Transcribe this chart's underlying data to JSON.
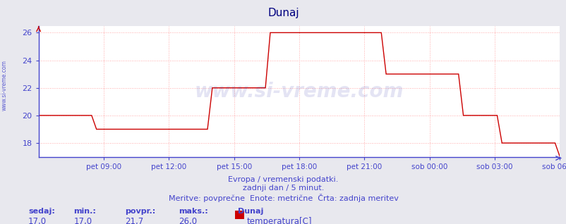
{
  "title": "Dunaj",
  "title_color": "#000080",
  "bg_color": "#e8e8ee",
  "plot_bg_color": "#ffffff",
  "line_color": "#cc0000",
  "grid_color": "#ffaaaa",
  "grid_linestyle": ":",
  "axis_color": "#4444cc",
  "text_color": "#4444cc",
  "watermark": "www.si-vreme.com",
  "watermark_color": "#3333aa",
  "watermark_alpha": 0.13,
  "ylim": [
    17.0,
    26.5
  ],
  "yticks": [
    18,
    20,
    22,
    24,
    26
  ],
  "xlabel_texts": [
    "pet 09:00",
    "pet 12:00",
    "pet 15:00",
    "pet 18:00",
    "pet 21:00",
    "sob 00:00",
    "sob 03:00",
    "sob 06:00"
  ],
  "footer_line1": "Evropa / vremenski podatki.",
  "footer_line2": "zadnji dan / 5 minut.",
  "footer_line3": "Meritve: povprečne  Enote: metrične  Črta: zadnja meritev",
  "stat_headers": [
    "sedaj:",
    "min.:",
    "povpr.:",
    "maks.:",
    "Dunaj"
  ],
  "stat_values": [
    "17,0",
    "17,0",
    "21,7",
    "26,0"
  ],
  "legend_label": "temperatura[C]",
  "legend_color": "#cc0000",
  "left_label": "www.si-vreme.com",
  "temperature_data": [
    20,
    20,
    20,
    20,
    20,
    20,
    20,
    20,
    20,
    20,
    20,
    20,
    19,
    19,
    19,
    19,
    19,
    19,
    19,
    19,
    19,
    19,
    19,
    19,
    19,
    19,
    19,
    19,
    19,
    19,
    19,
    19,
    19,
    19,
    19,
    19,
    22,
    22,
    22,
    22,
    22,
    22,
    22,
    22,
    22,
    22,
    22,
    22,
    26,
    26,
    26,
    26,
    26,
    26,
    26,
    26,
    26,
    26,
    26,
    26,
    26,
    26,
    26,
    26,
    26,
    26,
    26,
    26,
    26,
    26,
    26,
    26,
    23,
    23,
    23,
    23,
    23,
    23,
    23,
    23,
    23,
    23,
    23,
    23,
    23,
    23,
    23,
    23,
    20,
    20,
    20,
    20,
    20,
    20,
    20,
    20,
    18,
    18,
    18,
    18,
    18,
    18,
    18,
    18,
    18,
    18,
    18,
    18,
    17
  ]
}
